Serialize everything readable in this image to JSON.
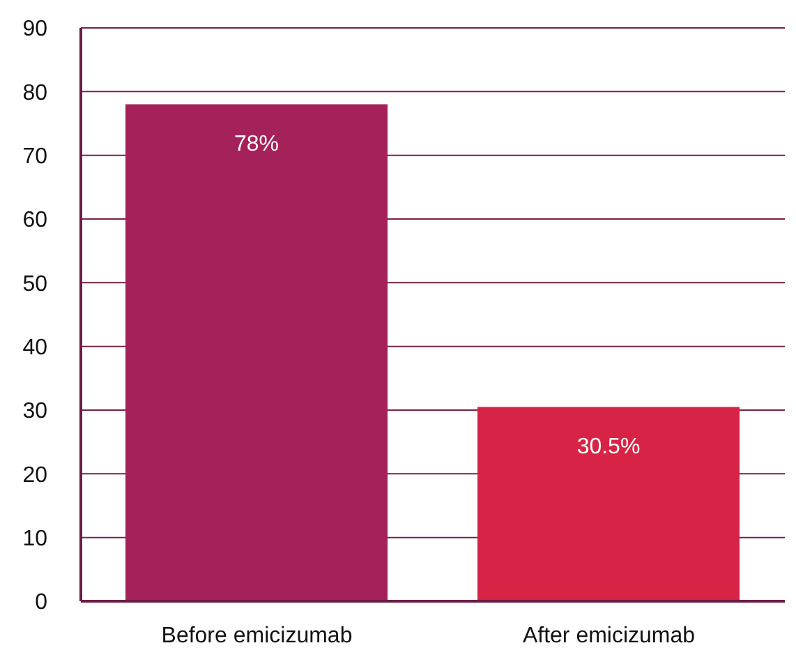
{
  "chart_data": {
    "type": "bar",
    "categories": [
      "Before emicizumab",
      "After emicizumab"
    ],
    "values": [
      78,
      30.5
    ],
    "colors": [
      "#a4215a",
      "#d72345"
    ],
    "value_labels": [
      "78%",
      "30.5%"
    ],
    "ylim": [
      0,
      90
    ],
    "yticks": [
      0,
      10,
      20,
      30,
      40,
      50,
      60,
      70,
      80,
      90
    ],
    "grid": "y"
  }
}
